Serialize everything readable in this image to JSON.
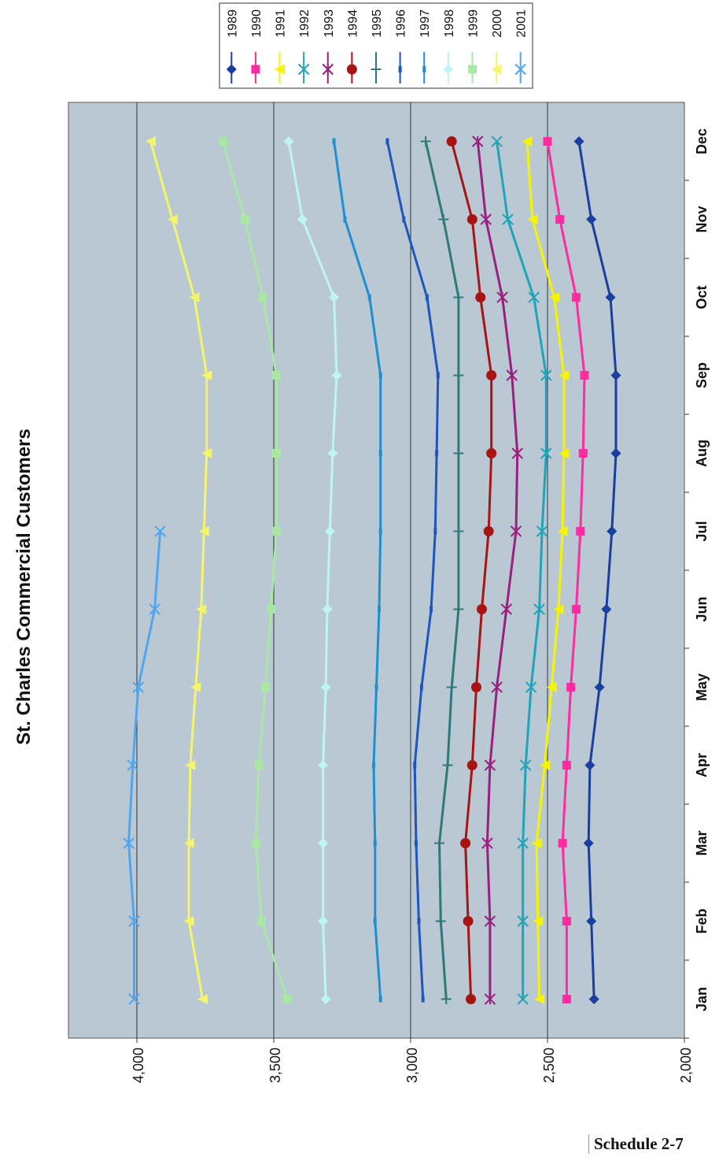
{
  "page": {
    "footer_label": "Schedule 2-7"
  },
  "chart_data": {
    "type": "line",
    "title": "St. Charles Commercial Customers",
    "xlabel": "",
    "ylabel": "",
    "categories": [
      "Jan",
      "Feb",
      "Mar",
      "Apr",
      "May",
      "Jun",
      "Jul",
      "Aug",
      "Sep",
      "Oct",
      "Nov",
      "Dec"
    ],
    "ylim": [
      2000,
      4250
    ],
    "yticks": [
      2000,
      2500,
      3000,
      3500,
      4000
    ],
    "ytick_labels": [
      "2,000",
      "2,500",
      "3,000",
      "3,500",
      "4,000"
    ],
    "grid": true,
    "legend_position": "top",
    "plot_background": "#b9c8d3",
    "series": [
      {
        "name": "1989",
        "color": "#1a3f9e",
        "marker": "diamond",
        "values": [
          2330,
          2340,
          2350,
          2345,
          2310,
          2285,
          2265,
          2250,
          2250,
          2270,
          2340,
          2385
        ]
      },
      {
        "name": "1990",
        "color": "#ff2ba0",
        "marker": "square",
        "values": [
          2430,
          2430,
          2445,
          2430,
          2415,
          2395,
          2380,
          2370,
          2365,
          2395,
          2455,
          2500
        ]
      },
      {
        "name": "1991",
        "color": "#f5f500",
        "marker": "triangle",
        "values": [
          2530,
          2535,
          2540,
          2510,
          2485,
          2460,
          2445,
          2440,
          2440,
          2475,
          2555,
          2575
        ]
      },
      {
        "name": "1992",
        "color": "#20a5b8",
        "marker": "x",
        "values": [
          2590,
          2590,
          2590,
          2580,
          2560,
          2530,
          2520,
          2505,
          2505,
          2550,
          2645,
          2685
        ]
      },
      {
        "name": "1993",
        "color": "#9a1f7f",
        "marker": "star",
        "values": [
          2710,
          2710,
          2720,
          2710,
          2685,
          2650,
          2615,
          2610,
          2630,
          2665,
          2725,
          2755
        ]
      },
      {
        "name": "1994",
        "color": "#a81414",
        "marker": "circle",
        "values": [
          2780,
          2790,
          2800,
          2775,
          2760,
          2740,
          2715,
          2705,
          2705,
          2745,
          2775,
          2850
        ]
      },
      {
        "name": "1995",
        "color": "#2e7a7a",
        "marker": "plus",
        "values": [
          2870,
          2890,
          2895,
          2865,
          2850,
          2825,
          2825,
          2825,
          2825,
          2825,
          2880,
          2945
        ]
      },
      {
        "name": "1996",
        "color": "#1f55bf",
        "marker": "dash",
        "values": [
          2955,
          2970,
          2980,
          2985,
          2960,
          2925,
          2910,
          2905,
          2900,
          2940,
          3025,
          3085
        ]
      },
      {
        "name": "1997",
        "color": "#1e90d0",
        "marker": "dash",
        "values": [
          3110,
          3130,
          3130,
          3135,
          3125,
          3115,
          3110,
          3110,
          3110,
          3150,
          3240,
          3280
        ]
      },
      {
        "name": "1998",
        "color": "#bef4f4",
        "marker": "diamond",
        "values": [
          3310,
          3320,
          3320,
          3320,
          3310,
          3305,
          3295,
          3285,
          3270,
          3280,
          3395,
          3445
        ]
      },
      {
        "name": "1999",
        "color": "#a9e8a4",
        "marker": "square",
        "values": [
          3450,
          3545,
          3565,
          3555,
          3530,
          3510,
          3490,
          3490,
          3490,
          3540,
          3605,
          3685
        ]
      },
      {
        "name": "2000",
        "color": "#f5f56a",
        "marker": "triangle",
        "values": [
          3760,
          3810,
          3810,
          3805,
          3785,
          3765,
          3755,
          3745,
          3745,
          3790,
          3870,
          3950
        ]
      },
      {
        "name": "2001",
        "color": "#4fa6ef",
        "marker": "x",
        "values": [
          4010,
          4010,
          4030,
          4015,
          3995,
          3935,
          3915,
          null,
          null,
          null,
          null,
          null
        ]
      }
    ]
  }
}
